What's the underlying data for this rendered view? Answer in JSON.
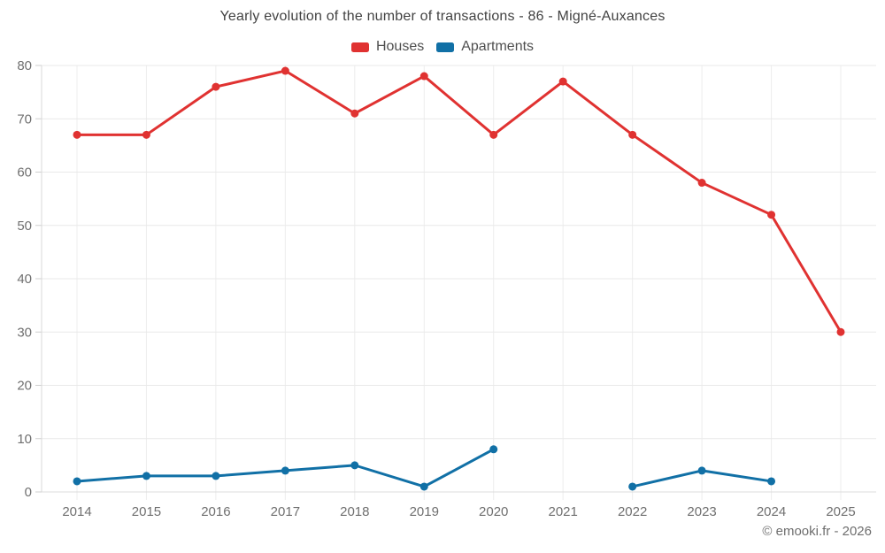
{
  "page": {
    "title": "Yearly evolution of the number of transactions - 86 - Migné-Auxances",
    "footer": "© emooki.fr - 2026"
  },
  "legend": {
    "items": [
      {
        "label": "Houses",
        "color": "#e03231"
      },
      {
        "label": "Apartments",
        "color": "#1170a6"
      }
    ]
  },
  "chart_data": {
    "type": "line",
    "title": "Yearly evolution of the number of transactions - 86 - Migné-Auxances",
    "categories": [
      "2014",
      "2015",
      "2016",
      "2017",
      "2018",
      "2019",
      "2020",
      "2021",
      "2022",
      "2023",
      "2024",
      "2025"
    ],
    "series": [
      {
        "name": "Houses",
        "color": "#e03231",
        "marker": "circle",
        "values": [
          67,
          67,
          76,
          79,
          71,
          78,
          67,
          77,
          67,
          58,
          52,
          30
        ]
      },
      {
        "name": "Apartments",
        "color": "#1170a6",
        "marker": "circle",
        "values": [
          2,
          3,
          3,
          4,
          5,
          1,
          8,
          null,
          1,
          4,
          2,
          null
        ]
      }
    ],
    "xlabel": "",
    "ylabel": "",
    "ylim": [
      0,
      80
    ],
    "ytick_step": 10,
    "grid": true,
    "legend_position": "top",
    "annotation": "© emooki.fr - 2026"
  }
}
